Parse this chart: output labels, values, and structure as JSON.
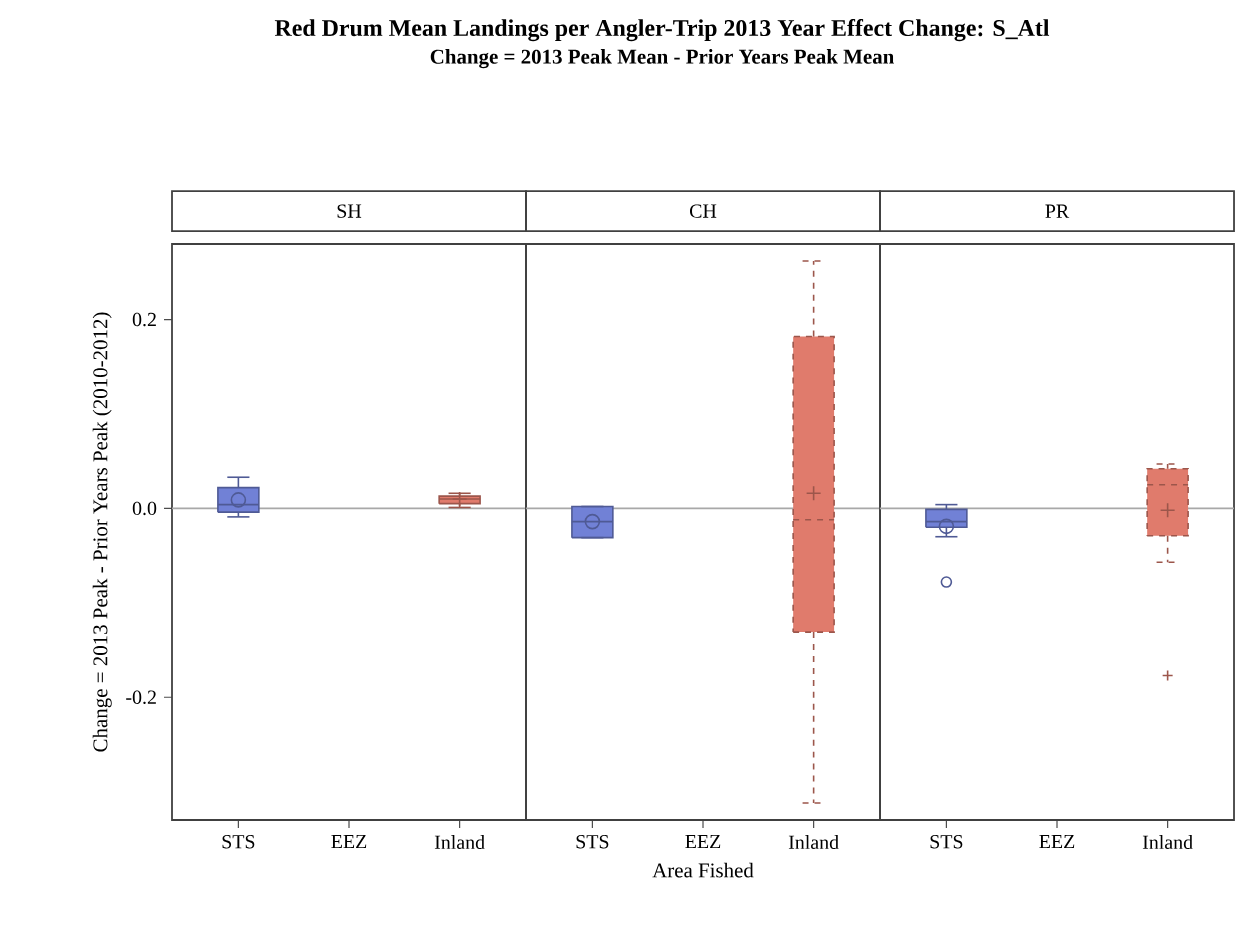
{
  "chart_data": [
    {
      "type": "box",
      "title": "SH",
      "ylabel": "Change = 2013 Peak - Prior Years Peak (2010-2012)",
      "annotations": [
        "Red Drum Mean Landings per Angler-Trip 2013 Year Effect Change: S_Atl",
        "Change = 2013 Peak Mean - Prior Years Peak Mean"
      ],
      "categories": [
        "STS",
        "EEZ",
        "Inland"
      ],
      "ylim": [
        -0.33,
        0.28
      ],
      "yticks": [
        {
          "value": -0.2,
          "label": "-0.2"
        },
        {
          "value": 0,
          "label": "0.0"
        },
        {
          "value": 0.2,
          "label": "0.2"
        }
      ],
      "ref_lines": [
        {
          "axis": "y",
          "value": 0,
          "color": "#a8a8a8"
        }
      ],
      "series": [
        {
          "color": "#7181d6",
          "marker": "circle",
          "line_style": "solid",
          "boxes": [
            {
              "low": -0.009,
              "q1": -0.004,
              "median": 0.004,
              "q3": 0.022,
              "high": 0.033,
              "mean": 0.009
            },
            null,
            null
          ]
        },
        {
          "color": "#e07b6c",
          "marker": "cross",
          "line_style": "solid",
          "boxes": [
            null,
            null,
            {
              "low": 0.001,
              "q1": 0.005,
              "median": 0.01,
              "q3": 0.013,
              "high": 0.016,
              "mean": 0.01
            }
          ]
        }
      ]
    },
    {
      "type": "box",
      "title": "CH",
      "xlabel": "Area Fished",
      "categories": [
        "STS",
        "EEZ",
        "Inland"
      ],
      "ylim": [
        -0.33,
        0.28
      ],
      "tick_labels": "x",
      "ref_lines": [
        {
          "axis": "y",
          "value": 0,
          "color": "#a8a8a8"
        }
      ],
      "series": [
        {
          "color": "#7181d6",
          "marker": "circle",
          "line_style": "solid",
          "boxes": [
            {
              "low": -0.031,
              "q1": -0.031,
              "median": -0.014,
              "q3": 0.002,
              "high": 0.002,
              "mean": -0.014
            },
            null,
            null
          ]
        },
        {
          "color": "#e07b6c",
          "marker": "cross",
          "line_style": "dashed",
          "boxes": [
            null,
            null,
            {
              "low": -0.312,
              "q1": -0.131,
              "median": -0.012,
              "q3": 0.182,
              "high": 0.262,
              "mean": 0.016
            }
          ]
        }
      ]
    },
    {
      "type": "box",
      "title": "PR",
      "categories": [
        "STS",
        "EEZ",
        "Inland"
      ],
      "ylim": [
        -0.33,
        0.28
      ],
      "tick_labels": "x",
      "ref_lines": [
        {
          "axis": "y",
          "value": 0,
          "color": "#a8a8a8"
        }
      ],
      "series": [
        {
          "color": "#7181d6",
          "marker": "circle",
          "line_style": "solid",
          "boxes": [
            {
              "low": -0.03,
              "q1": -0.02,
              "median": -0.014,
              "q3": -0.001,
              "high": 0.004,
              "mean": -0.019,
              "outliers": [
                -0.078
              ]
            },
            null,
            null
          ]
        },
        {
          "color": "#e07b6c",
          "marker": "cross",
          "line_style": "dashed",
          "boxes": [
            null,
            null,
            {
              "low": -0.057,
              "q1": -0.029,
              "median": 0.025,
              "q3": 0.042,
              "high": 0.047,
              "mean": -0.002,
              "outliers": [
                -0.177
              ]
            }
          ]
        }
      ]
    }
  ]
}
